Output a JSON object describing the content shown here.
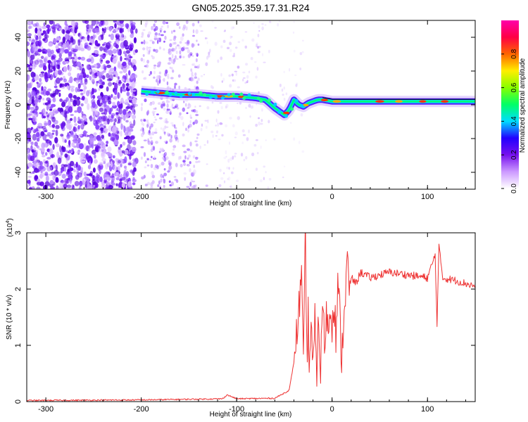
{
  "title": "GN05.2025.359.17.31.R24",
  "chart_data": [
    {
      "type": "heatmap",
      "xlabel": "Height of straight line (km)",
      "ylabel": "Frequency (Hz)",
      "xlim": [
        -320,
        150
      ],
      "ylim": [
        -50,
        50
      ],
      "xticks": [
        -300,
        -200,
        -100,
        0,
        100
      ],
      "xtick_labels": [
        "-300",
        "-200",
        "-100",
        "0",
        "100"
      ],
      "yticks": [
        -40,
        -20,
        0,
        20,
        40
      ],
      "ytick_labels": [
        "-40",
        "-20",
        "0",
        "20",
        "40"
      ],
      "grid": false,
      "ridge": {
        "x": [
          -200,
          -180,
          -160,
          -140,
          -120,
          -100,
          -80,
          -70,
          -60,
          -50,
          -45,
          -40,
          -35,
          -30,
          -25,
          -20,
          -15,
          -10,
          0,
          20,
          50,
          100,
          150
        ],
        "y": [
          8,
          7,
          6,
          6,
          5,
          5,
          4,
          3,
          -2,
          -6,
          -3,
          3,
          0,
          -1,
          1,
          2,
          3,
          3,
          2,
          2,
          2,
          2,
          2
        ]
      },
      "colorbar": {
        "label": "Normalized spectral amplitude",
        "range": [
          0,
          1
        ],
        "ticks": [
          0.0,
          0.2,
          0.4,
          0.6,
          0.8
        ],
        "tick_labels": [
          "0.0",
          "0.2",
          "0.4",
          "0.6",
          "0.8"
        ],
        "colors": [
          "#ffffff",
          "#cc99ff",
          "#7711ee",
          "#2200ff",
          "#00ddff",
          "#00ff66",
          "#88ff00",
          "#ffee00",
          "#ff6600",
          "#ff0044",
          "#ff00aa"
        ]
      }
    },
    {
      "type": "line",
      "xlabel": "Height of straight line (km)",
      "ylabel": "SNR (10 * v/v)",
      "scale_note": "(x10",
      "scale_exp": "4",
      "xlim": [
        -320,
        150
      ],
      "ylim": [
        0,
        3
      ],
      "xticks": [
        -300,
        -200,
        -100,
        0,
        100
      ],
      "xtick_labels": [
        "-300",
        "-200",
        "-100",
        "0",
        "100"
      ],
      "yticks": [
        0,
        1,
        2,
        3
      ],
      "ytick_labels": [
        "0",
        "1",
        "2",
        "3"
      ],
      "grid": false,
      "series": [
        {
          "color": "#ee3333",
          "x": [
            -320,
            -200,
            -115,
            -110,
            -100,
            -60,
            -45,
            -40,
            -36,
            -32,
            -30,
            -28,
            -26,
            -25,
            -24,
            -22,
            -20,
            -18,
            -16,
            -14,
            -12,
            -10,
            -8,
            -6,
            -4,
            -2,
            0,
            2,
            4,
            6,
            8,
            10,
            12,
            14,
            16,
            18,
            20,
            25,
            30,
            40,
            60,
            80,
            100,
            108,
            110,
            112,
            116,
            130,
            150
          ],
          "y": [
            0.02,
            0.03,
            0.05,
            0.12,
            0.05,
            0.06,
            0.2,
            0.7,
            1.4,
            2.2,
            0.5,
            3.0,
            0.4,
            1.7,
            0.6,
            1.3,
            0.5,
            1.4,
            0.6,
            1.5,
            0.5,
            1.8,
            1.0,
            1.6,
            1.2,
            1.7,
            1.4,
            1.9,
            1.2,
            2.0,
            1.6,
            0.7,
            1.5,
            1.9,
            2.6,
            1.8,
            2.2,
            2.1,
            2.3,
            2.2,
            2.3,
            2.25,
            2.2,
            2.6,
            1.4,
            2.75,
            2.2,
            2.15,
            2.05
          ]
        }
      ]
    }
  ]
}
